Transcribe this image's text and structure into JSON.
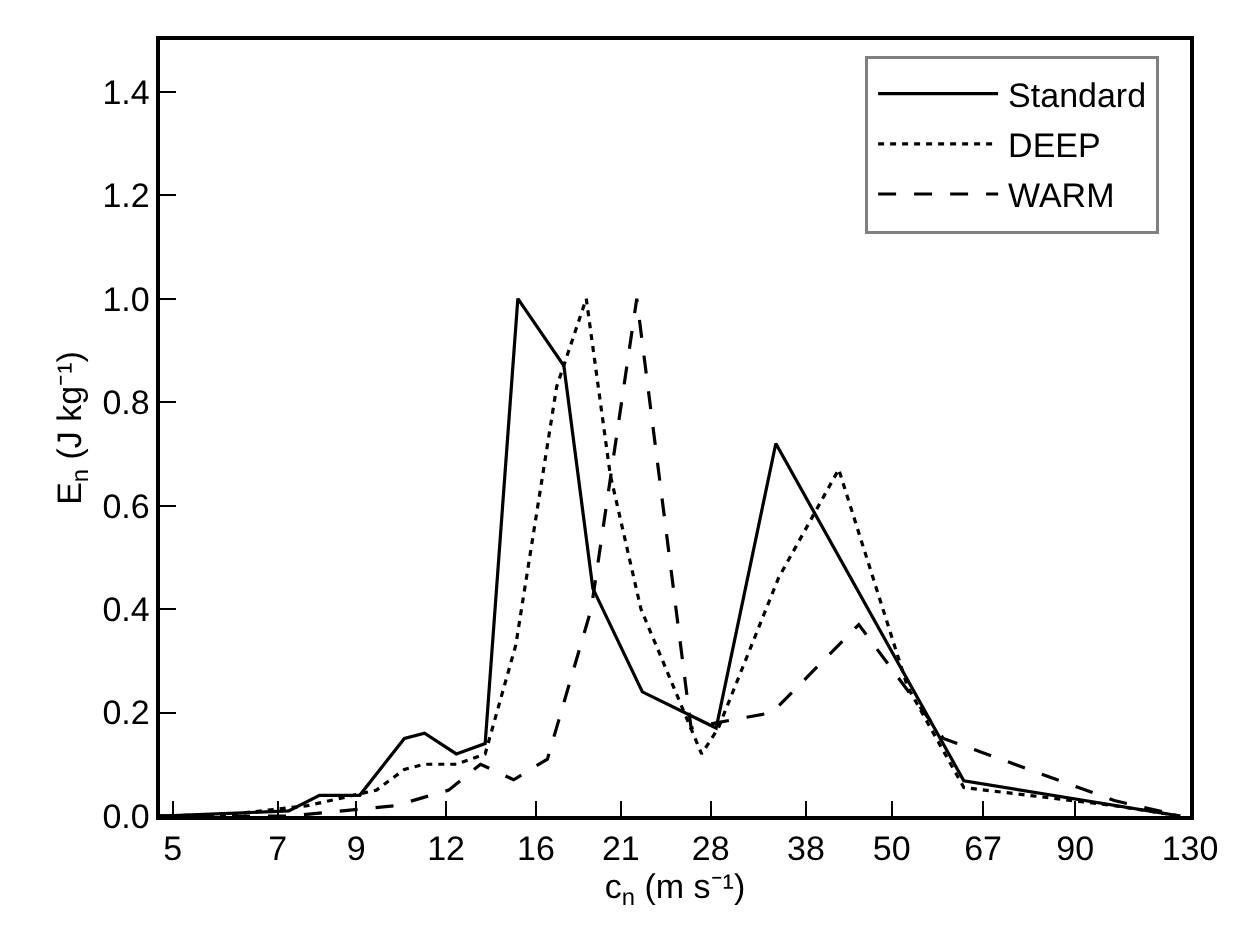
{
  "chart_data": {
    "type": "line",
    "xlabel": "c$_{n}$ (m s⁻¹)",
    "ylabel": "E$_{n}$ (J kg⁻¹)",
    "log": "x",
    "xlim": [
      4.8,
      130
    ],
    "xticks": [
      5,
      7,
      9,
      12,
      16,
      21,
      28,
      38,
      50,
      67,
      90,
      130
    ],
    "ylim": [
      0,
      1.5
    ],
    "yticks": [
      {
        "value": 0,
        "label": "0.0"
      },
      0.2,
      0.4,
      0.6,
      0.8,
      {
        "value": 1,
        "label": "1.0"
      },
      1.2,
      1.4
    ],
    "legend": "top right",
    "marker": "none",
    "series": [
      {
        "name": "Standard",
        "color": "#000000",
        "line_style": "solid",
        "x": [
          4.8,
          6,
          7.25,
          8.0,
          9.1,
          10.5,
          11.2,
          12.4,
          13.6,
          15.1,
          17.5,
          19.2,
          22.5,
          28.5,
          34.5,
          63,
          126
        ],
        "values": [
          0,
          0.005,
          0.01,
          0.04,
          0.04,
          0.15,
          0.16,
          0.12,
          0.14,
          1.0,
          0.87,
          0.44,
          0.24,
          0.17,
          0.72,
          0.068,
          0
        ]
      },
      {
        "name": "DEEP",
        "color": "#000000",
        "line_style": "dotted",
        "x": [
          4.8,
          6,
          7.7,
          9.6,
          10.5,
          11.2,
          12.4,
          13.6,
          15.0,
          17.1,
          18.8,
          20.3,
          22.4,
          27.2,
          28.7,
          34.8,
          42.2,
          52.6,
          63,
          102,
          126
        ],
        "values": [
          0,
          0.003,
          0.02,
          0.05,
          0.09,
          0.1,
          0.1,
          0.12,
          0.33,
          0.83,
          1.0,
          0.66,
          0.4,
          0.12,
          0.17,
          0.46,
          0.67,
          0.25,
          0.055,
          0.02,
          0
        ]
      },
      {
        "name": "WARM",
        "color": "#000000",
        "line_style": "dashed",
        "x": [
          4.8,
          7.3,
          8.6,
          10.2,
          12.1,
          13.4,
          14.9,
          16.6,
          19.1,
          22.1,
          26.3,
          28.5,
          34.1,
          45.0,
          59,
          102,
          126
        ],
        "values": [
          0,
          0,
          0.01,
          0.02,
          0.05,
          0.1,
          0.07,
          0.11,
          0.4,
          1.0,
          0.17,
          0.18,
          0.2,
          0.37,
          0.15,
          0.03,
          0
        ]
      }
    ]
  }
}
